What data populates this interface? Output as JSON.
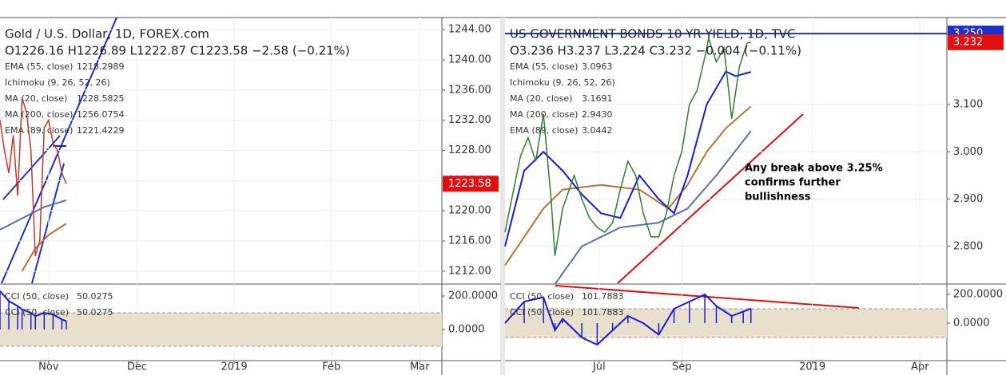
{
  "chart_data": [
    {
      "type": "line",
      "title": "Gold / U.S. Dollar, 1D, FOREX.com",
      "ohlc": "O1226.16  H1226.89  L1222.87  C1223.58  −2.58 (−0.21%)",
      "xlim": [
        0,
        100
      ],
      "xticks": [
        {
          "value": 11,
          "label": "Nov"
        },
        {
          "value": 31,
          "label": "Dec"
        },
        {
          "value": 53,
          "label": "2019"
        },
        {
          "value": 75,
          "label": "Feb"
        },
        {
          "value": 95,
          "label": "Mar"
        }
      ],
      "ylim": [
        1210.4,
        1245.6
      ],
      "yticks": [
        {
          "value": 1212,
          "label": "1212.00"
        },
        {
          "value": 1216,
          "label": "1216.00"
        },
        {
          "value": 1220,
          "label": "1220.00"
        },
        {
          "value": 1224,
          "label": "1224.00"
        },
        {
          "value": 1228,
          "label": "1228.00"
        },
        {
          "value": 1232,
          "label": "1232.00"
        },
        {
          "value": 1236,
          "label": "1236.00"
        },
        {
          "value": 1240,
          "label": "1240.00"
        },
        {
          "value": 1244,
          "label": "1244.00"
        }
      ],
      "price_labels": [
        {
          "value": 1223.58,
          "label": "1223.58",
          "color": "#e01010"
        }
      ],
      "price": {
        "color": "#c0392b",
        "x": [
          0,
          1,
          2,
          3,
          4,
          5,
          6,
          7,
          8,
          9,
          10,
          11,
          12,
          13,
          14,
          15
        ],
        "values": [
          1232,
          1228,
          1225,
          1230,
          1222,
          1235,
          1233,
          1228,
          1214,
          1216,
          1231,
          1232,
          1229,
          1228,
          1225,
          1223.58
        ]
      },
      "series": [
        {
          "name": "EMA (55, close)",
          "value_label": "1218.2989",
          "color": "#b8732e",
          "x": [
            5,
            8,
            11,
            15
          ],
          "values": [
            1212,
            1215,
            1216.8,
            1218.3
          ]
        },
        {
          "name": "Ichimoku (9, 26, 52, 26)",
          "color": "#c8c8c8"
        },
        {
          "name": "MA (20, close)",
          "value_label": "1228.5825",
          "color": "#1a1ae0",
          "x": [
            12,
            15
          ],
          "values": [
            1228.6,
            1228.58
          ]
        },
        {
          "name": "MA (200, close)",
          "value_label": "1256.0754",
          "color": "#3a60b0"
        },
        {
          "name": "EMA (89, close)",
          "value_label": "1221.4229",
          "color": "#5b6fb5",
          "x": [
            0,
            5,
            10,
            15
          ],
          "values": [
            1217.5,
            1219,
            1220.5,
            1221.4
          ]
        }
      ],
      "oscillator": {
        "legend": [
          {
            "name": "CCI (50, close)",
            "value_label": "50.0275"
          },
          {
            "name": "CCI (50, close)",
            "value_label": "50.0275"
          }
        ],
        "color": "#1a1ae0",
        "band": [
          -100,
          100
        ],
        "ylim": [
          -185.7,
          266.7
        ],
        "yticks": [
          {
            "value": 200,
            "label": "200.0000"
          },
          {
            "value": 0,
            "label": "0.0000"
          }
        ],
        "x": [
          0,
          2,
          4,
          5,
          7,
          8,
          10,
          12,
          14,
          15
        ],
        "values": [
          230,
          170,
          140,
          120,
          100,
          80,
          100,
          90,
          60,
          50
        ]
      }
    },
    {
      "type": "line",
      "title": "US GOVERNMENT BONDS 10 YR YIELD, 1D, TVC",
      "ohlc": "O3.236  H3.237  L3.224  C3.232  −0.004 (−0.11%)",
      "xlim": [
        0,
        230
      ],
      "xticks": [
        {
          "value": 49,
          "label": "Jul"
        },
        {
          "value": 92,
          "label": "Sep"
        },
        {
          "value": 160,
          "label": "2019"
        },
        {
          "value": 216,
          "label": "Apr"
        }
      ],
      "ylim": [
        2.722,
        3.284
      ],
      "yticks": [
        {
          "value": 2.8,
          "label": "2.800"
        },
        {
          "value": 2.9,
          "label": "2.900"
        },
        {
          "value": 3,
          "label": "3.000"
        },
        {
          "value": 3.1,
          "label": "3.100"
        }
      ],
      "price_labels": [
        {
          "value": 3.25,
          "label": "3.250",
          "color": "#1a2fd0"
        },
        {
          "value": 3.232,
          "label": "3.232",
          "color": "#e01010"
        }
      ],
      "hline": 3.25,
      "annotation": [
        "Any break above 3.25%",
        "confirms further",
        "bullishness"
      ],
      "price": {
        "color": "#2e7d32",
        "x": [
          0,
          8,
          12,
          16,
          20,
          24,
          26,
          30,
          36,
          40,
          44,
          48,
          52,
          56,
          60,
          64,
          68,
          72,
          76,
          80,
          84,
          88,
          92,
          96,
          100,
          104,
          106,
          110,
          114,
          118,
          122,
          126,
          128
        ],
        "values": [
          2.83,
          2.99,
          3.03,
          2.98,
          3.08,
          2.9,
          2.78,
          2.88,
          2.95,
          2.9,
          2.86,
          2.84,
          2.83,
          2.85,
          2.92,
          2.98,
          2.95,
          2.87,
          2.82,
          2.82,
          2.87,
          2.95,
          3.0,
          3.1,
          3.13,
          3.2,
          3.24,
          3.19,
          3.22,
          3.07,
          3.18,
          3.23,
          3.232
        ]
      },
      "series": [
        {
          "name": "EMA (55, close)",
          "value_label": "3.0963",
          "color": "#b8732e",
          "x": [
            0,
            20,
            30,
            50,
            70,
            85,
            95,
            105,
            115,
            128
          ],
          "values": [
            2.76,
            2.88,
            2.92,
            2.93,
            2.92,
            2.88,
            2.93,
            3.0,
            3.05,
            3.096
          ]
        },
        {
          "name": "Ichimoku (9, 26, 52, 26)",
          "color": "#c8c8c8"
        },
        {
          "name": "MA (20, close)",
          "value_label": "3.1691",
          "color": "#1a1ae0",
          "x": [
            0,
            10,
            20,
            30,
            40,
            50,
            60,
            70,
            80,
            88,
            95,
            105,
            115,
            120,
            128
          ],
          "values": [
            2.8,
            2.96,
            3.0,
            2.96,
            2.91,
            2.87,
            2.86,
            2.95,
            2.9,
            2.87,
            2.95,
            3.1,
            3.17,
            3.16,
            3.169
          ]
        },
        {
          "name": "MA (200, close)",
          "value_label": "2.9430",
          "color": "#3a60b0"
        },
        {
          "name": "EMA (89, close)",
          "value_label": "3.0442",
          "color": "#5b6fb5",
          "x": [
            26,
            40,
            60,
            80,
            95,
            110,
            128
          ],
          "values": [
            2.72,
            2.8,
            2.84,
            2.85,
            2.88,
            2.95,
            3.044
          ]
        }
      ],
      "oscillator": {
        "legend": [
          {
            "name": "CCI (50, close)",
            "value_label": "101.7883"
          },
          {
            "name": "CCI (50, close)",
            "value_label": "101.7883"
          }
        ],
        "color": "#1a1ae0",
        "band": [
          -100,
          100
        ],
        "ylim": [
          -261,
          266.7
        ],
        "yticks": [
          {
            "value": 200,
            "label": "200.0000"
          },
          {
            "value": 0,
            "label": "0.0000"
          }
        ],
        "x": [
          0,
          10,
          20,
          26,
          30,
          40,
          48,
          56,
          64,
          72,
          80,
          88,
          96,
          104,
          110,
          118,
          124,
          128
        ],
        "values": [
          0,
          150,
          180,
          -50,
          30,
          -100,
          -150,
          -50,
          50,
          0,
          -80,
          100,
          150,
          200,
          120,
          50,
          80,
          101.8
        ]
      }
    }
  ]
}
